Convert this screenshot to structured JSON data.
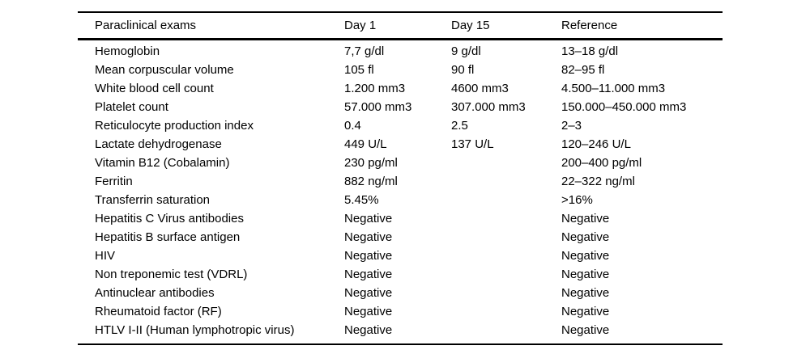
{
  "table": {
    "columns": [
      "Paraclinical exams",
      "Day 1",
      "Day 15",
      "Reference"
    ],
    "rows": [
      {
        "exam": "Hemoglobin",
        "day1": "7,7 g/dl",
        "day15": "9 g/dl",
        "reference": "13–18 g/dl"
      },
      {
        "exam": "Mean corpuscular volume",
        "day1": "105 fl",
        "day15": "90 fl",
        "reference": "82–95 fl"
      },
      {
        "exam": "White blood cell count",
        "day1": "1.200 mm3",
        "day15": "4600 mm3",
        "reference": "4.500–11.000 mm3"
      },
      {
        "exam": "Platelet count",
        "day1": "57.000 mm3",
        "day15": "307.000 mm3",
        "reference": "150.000–450.000 mm3"
      },
      {
        "exam": "Reticulocyte production index",
        "day1": "0.4",
        "day15": "2.5",
        "reference": "2–3"
      },
      {
        "exam": "Lactate dehydrogenase",
        "day1": "449 U/L",
        "day15": "137 U/L",
        "reference": "120–246 U/L"
      },
      {
        "exam": "Vitamin B12 (Cobalamin)",
        "day1": "230 pg/ml",
        "day15": "",
        "reference": "200–400 pg/ml"
      },
      {
        "exam": "Ferritin",
        "day1": "882 ng/ml",
        "day15": "",
        "reference": "22–322 ng/ml"
      },
      {
        "exam": "Transferrin saturation",
        "day1": "5.45%",
        "day15": "",
        "reference": ">16%"
      },
      {
        "exam": "Hepatitis C Virus antibodies",
        "day1": "Negative",
        "day15": "",
        "reference": "Negative"
      },
      {
        "exam": "Hepatitis B surface antigen",
        "day1": "Negative",
        "day15": "",
        "reference": "Negative"
      },
      {
        "exam": "HIV",
        "day1": "Negative",
        "day15": "",
        "reference": "Negative"
      },
      {
        "exam": "Non treponemic test (VDRL)",
        "day1": "Negative",
        "day15": "",
        "reference": "Negative"
      },
      {
        "exam": "Antinuclear antibodies",
        "day1": "Negative",
        "day15": "",
        "reference": "Negative"
      },
      {
        "exam": "Rheumatoid factor (RF)",
        "day1": "Negative",
        "day15": "",
        "reference": "Negative"
      },
      {
        "exam": "HTLV I-II (Human lymphotropic virus)",
        "day1": "Negative",
        "day15": "",
        "reference": "Negative"
      }
    ],
    "colors": {
      "text": "#000000",
      "background": "#ffffff",
      "rule": "#000000"
    }
  }
}
